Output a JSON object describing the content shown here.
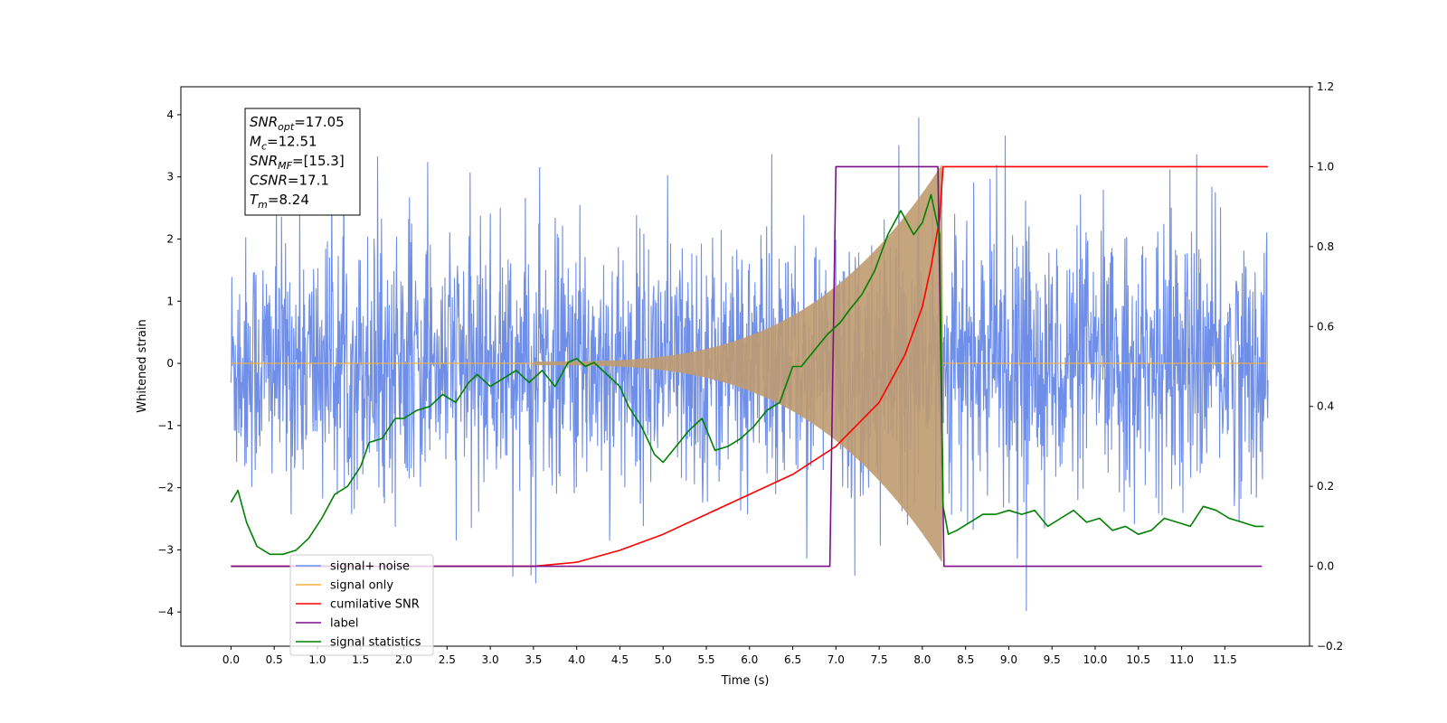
{
  "chart_data": {
    "type": "line",
    "xlabel": "Time (s)",
    "ylabel": "Whitened strain",
    "xlim": [
      -0.58,
      12.48
    ],
    "ylim": [
      -4.55,
      4.45
    ],
    "y2lim": [
      -0.2,
      1.2
    ],
    "x_ticks": [
      "0.0",
      "0.5",
      "1.0",
      "1.5",
      "2.0",
      "2.5",
      "3.0",
      "3.5",
      "4.0",
      "4.5",
      "5.0",
      "5.5",
      "6.0",
      "6.5",
      "7.0",
      "7.5",
      "8.0",
      "8.5",
      "9.0",
      "9.5",
      "10.0",
      "10.5",
      "11.0",
      "11.5"
    ],
    "y_ticks": [
      "-4",
      "-3",
      "-2",
      "-1",
      "0",
      "1",
      "2",
      "3",
      "4"
    ],
    "y2_ticks": [
      "-0.2",
      "0.0",
      "0.2",
      "0.4",
      "0.6",
      "0.8",
      "1.0",
      "1.2"
    ],
    "legend_position": "lower-left",
    "annotation": {
      "lines": [
        {
          "base": "SNR",
          "sub": "opt",
          "value": "=17.05"
        },
        {
          "base": "M",
          "sub": "c",
          "value": "=12.51"
        },
        {
          "base": "SNR",
          "sub": "MF",
          "value": "=[15.3]"
        },
        {
          "base": "CSNR",
          "sub": "",
          "value": "=17.1"
        },
        {
          "base": "T",
          "sub": "m",
          "value": "=8.24"
        }
      ]
    },
    "series": [
      {
        "name": "signal+ noise",
        "axis": "left",
        "color": "#6e8ee8",
        "description_stats": {
          "x_range": [
            0.0,
            12.0
          ],
          "typical_range": [
            -2.5,
            2.5
          ],
          "peak_max": 4.0,
          "peak_min": -4.1
        }
      },
      {
        "name": "signal only",
        "axis": "left",
        "color": "#f5b041",
        "chirp": {
          "start": 3.5,
          "end": 8.24,
          "peak_amplitude": 3.2,
          "fill_color": "#bf9b70"
        }
      },
      {
        "name": "cumilative SNR",
        "axis": "right",
        "color": "#ff0000",
        "x": [
          0.0,
          3.5,
          4.0,
          4.5,
          5.0,
          5.5,
          6.0,
          6.5,
          7.0,
          7.5,
          7.8,
          8.0,
          8.1,
          8.2,
          8.24,
          12.0
        ],
        "values": [
          0.0,
          0.0,
          0.01,
          0.04,
          0.08,
          0.13,
          0.18,
          0.23,
          0.3,
          0.41,
          0.53,
          0.65,
          0.75,
          0.87,
          1.0,
          1.0
        ]
      },
      {
        "name": "label",
        "axis": "right",
        "color": "#7b0f8a",
        "x": [
          0.0,
          6.93,
          7.0,
          8.18,
          8.25,
          11.93
        ],
        "values": [
          0.0,
          0.0,
          1.0,
          1.0,
          0.0,
          0.0
        ]
      },
      {
        "name": "signal statistics",
        "axis": "right",
        "color": "#008000",
        "x": [
          0.0,
          0.08,
          0.18,
          0.3,
          0.45,
          0.6,
          0.75,
          0.9,
          1.05,
          1.2,
          1.35,
          1.5,
          1.6,
          1.75,
          1.9,
          2.0,
          2.15,
          2.3,
          2.45,
          2.6,
          2.75,
          2.85,
          3.0,
          3.15,
          3.3,
          3.45,
          3.6,
          3.75,
          3.9,
          4.0,
          4.1,
          4.2,
          4.35,
          4.5,
          4.6,
          4.75,
          4.9,
          5.0,
          5.15,
          5.3,
          5.45,
          5.6,
          5.75,
          5.9,
          6.05,
          6.2,
          6.35,
          6.5,
          6.6,
          6.75,
          6.9,
          7.05,
          7.15,
          7.3,
          7.45,
          7.6,
          7.75,
          7.9,
          8.0,
          8.1,
          8.15,
          8.2,
          8.24,
          8.3,
          8.4,
          8.55,
          8.7,
          8.85,
          9.0,
          9.15,
          9.3,
          9.45,
          9.6,
          9.75,
          9.9,
          10.05,
          10.2,
          10.35,
          10.5,
          10.65,
          10.8,
          10.95,
          11.1,
          11.25,
          11.4,
          11.55,
          11.7,
          11.85,
          11.95
        ],
        "values": [
          0.16,
          0.19,
          0.11,
          0.05,
          0.03,
          0.03,
          0.04,
          0.07,
          0.12,
          0.18,
          0.2,
          0.25,
          0.31,
          0.32,
          0.37,
          0.37,
          0.39,
          0.4,
          0.43,
          0.41,
          0.46,
          0.48,
          0.45,
          0.47,
          0.49,
          0.46,
          0.49,
          0.45,
          0.51,
          0.52,
          0.5,
          0.51,
          0.48,
          0.45,
          0.4,
          0.35,
          0.28,
          0.26,
          0.3,
          0.34,
          0.37,
          0.29,
          0.3,
          0.32,
          0.35,
          0.39,
          0.41,
          0.5,
          0.5,
          0.54,
          0.58,
          0.61,
          0.64,
          0.68,
          0.74,
          0.83,
          0.89,
          0.83,
          0.86,
          0.93,
          0.88,
          0.83,
          0.15,
          0.08,
          0.09,
          0.11,
          0.13,
          0.13,
          0.14,
          0.13,
          0.14,
          0.1,
          0.12,
          0.14,
          0.11,
          0.12,
          0.09,
          0.1,
          0.08,
          0.09,
          0.12,
          0.11,
          0.1,
          0.15,
          0.14,
          0.12,
          0.11,
          0.1,
          0.1
        ]
      }
    ]
  }
}
